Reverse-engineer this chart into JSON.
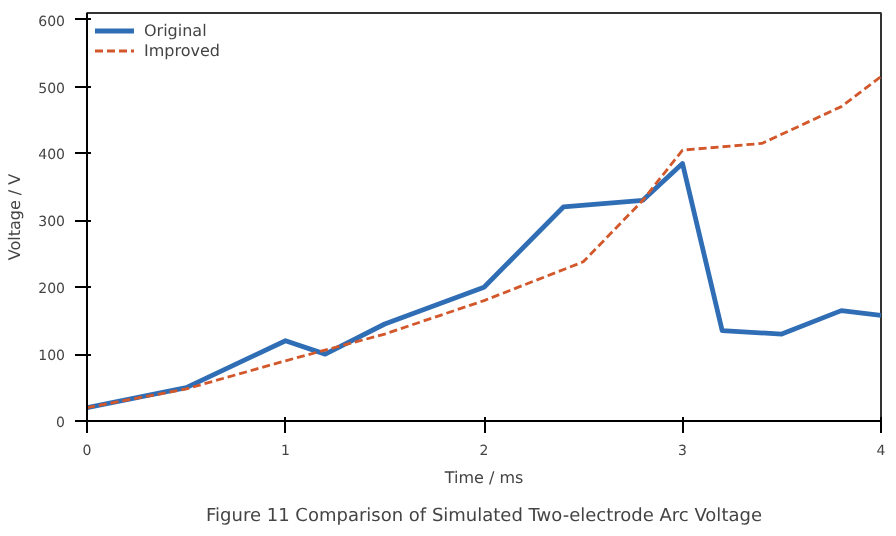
{
  "chart_data": {
    "type": "line",
    "title": "Figure 11 Comparison of Simulated Two-electrode Arc Voltage",
    "xlabel": "Time / ms",
    "ylabel": "Voltage / V",
    "xlim": [
      0,
      4
    ],
    "ylim": [
      0,
      610
    ],
    "xticks": [
      0,
      1,
      2,
      3,
      4
    ],
    "yticks": [
      0,
      100,
      200,
      300,
      400,
      500,
      600
    ],
    "grid": false,
    "legend": "top left",
    "series": [
      {
        "name": "Original",
        "color": "#2f6db5",
        "line_style": "solid",
        "x": [
          0,
          0.5,
          1,
          1.2,
          1.5,
          2,
          2.4,
          2.8,
          3,
          3.2,
          3.5,
          3.8,
          4
        ],
        "values": [
          20,
          50,
          120,
          100,
          145,
          200,
          320,
          330,
          385,
          135,
          130,
          165,
          158
        ]
      },
      {
        "name": "Improved",
        "color": "#d2572a",
        "line_style": "dashed",
        "x": [
          0,
          0.5,
          1,
          1.5,
          2,
          2.5,
          2.8,
          3,
          3.4,
          3.8,
          4
        ],
        "values": [
          20,
          48,
          90,
          130,
          180,
          238,
          330,
          405,
          415,
          470,
          515
        ]
      }
    ]
  }
}
